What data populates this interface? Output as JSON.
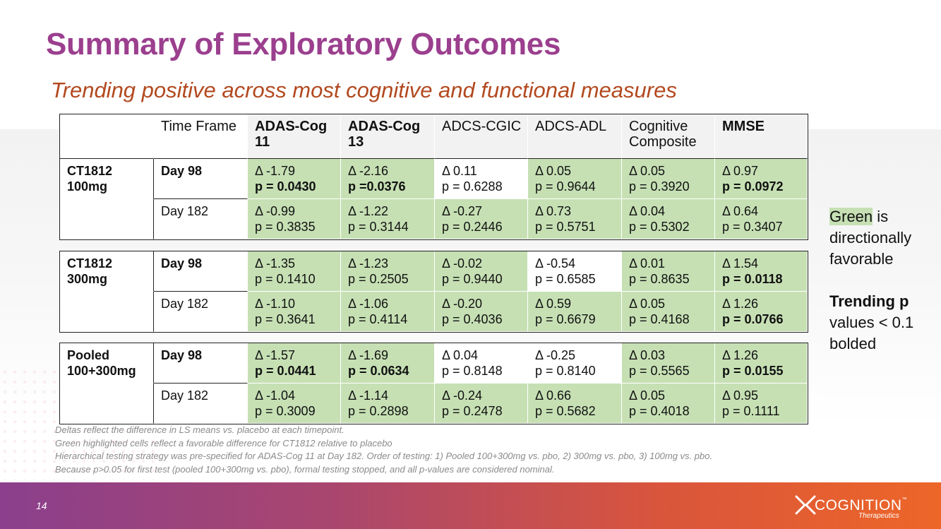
{
  "title": "Summary of Exploratory Outcomes",
  "subtitle": "Trending positive across most cognitive and functional measures",
  "header": {
    "time_frame": "Time Frame",
    "measures": [
      {
        "label": "ADAS-Cog 11",
        "bold": true
      },
      {
        "label": "ADAS-Cog 13",
        "bold": true
      },
      {
        "label": "ADCS-CGIC",
        "bold": false
      },
      {
        "label": "ADCS-ADL",
        "bold": false
      },
      {
        "label": "Cognitive Composite",
        "bold": false
      },
      {
        "label": "MMSE",
        "bold": true
      }
    ]
  },
  "groups": [
    {
      "name": "CT1812 100mg",
      "rows": [
        {
          "time": "Day 98",
          "time_bold": true,
          "cells": [
            {
              "delta": "Δ -1.79",
              "p": "p = 0.0430",
              "green": true,
              "bold": true
            },
            {
              "delta": "Δ -2.16",
              "p": "p =0.0376",
              "green": true,
              "bold": true
            },
            {
              "delta": "Δ 0.11",
              "p": "p = 0.6288",
              "green": false,
              "bold": false
            },
            {
              "delta": "Δ 0.05",
              "p": "p = 0.9644",
              "green": true,
              "bold": false
            },
            {
              "delta": "Δ 0.05",
              "p": "p = 0.3920",
              "green": true,
              "bold": false
            },
            {
              "delta": "Δ 0.97",
              "p": "p = 0.0972",
              "green": true,
              "bold": true
            }
          ]
        },
        {
          "time": "Day 182",
          "time_bold": false,
          "cells": [
            {
              "delta": "Δ -0.99",
              "p": "p = 0.3835",
              "green": true,
              "bold": false
            },
            {
              "delta": "Δ -1.22",
              "p": "p = 0.3144",
              "green": true,
              "bold": false
            },
            {
              "delta": "Δ -0.27",
              "p": "p = 0.2446",
              "green": true,
              "bold": false
            },
            {
              "delta": "Δ 0.73",
              "p": "p = 0.5751",
              "green": true,
              "bold": false
            },
            {
              "delta": "Δ 0.04",
              "p": "p = 0.5302",
              "green": true,
              "bold": false
            },
            {
              "delta": "Δ 0.64",
              "p": "p = 0.3407",
              "green": true,
              "bold": false
            }
          ]
        }
      ]
    },
    {
      "name": "CT1812 300mg",
      "rows": [
        {
          "time": "Day 98",
          "time_bold": true,
          "cells": [
            {
              "delta": "Δ -1.35",
              "p": "p = 0.1410",
              "green": true,
              "bold": false
            },
            {
              "delta": "Δ -1.23",
              "p": "p = 0.2505",
              "green": true,
              "bold": false
            },
            {
              "delta": "Δ -0.02",
              "p": "p = 0.9440",
              "green": true,
              "bold": false
            },
            {
              "delta": "Δ -0.54",
              "p": "p = 0.6585",
              "green": false,
              "bold": false
            },
            {
              "delta": "Δ 0.01",
              "p": "p = 0.8635",
              "green": true,
              "bold": false
            },
            {
              "delta": "Δ 1.54",
              "p": "p = 0.0118",
              "green": true,
              "bold": true
            }
          ]
        },
        {
          "time": "Day 182",
          "time_bold": false,
          "cells": [
            {
              "delta": "Δ -1.10",
              "p": "p = 0.3641",
              "green": true,
              "bold": false
            },
            {
              "delta": "Δ -1.06",
              "p": "p = 0.4114",
              "green": true,
              "bold": false
            },
            {
              "delta": "Δ -0.20",
              "p": "p = 0.4036",
              "green": true,
              "bold": false
            },
            {
              "delta": "Δ 0.59",
              "p": "p = 0.6679",
              "green": true,
              "bold": false
            },
            {
              "delta": "Δ 0.05",
              "p": "p = 0.4168",
              "green": true,
              "bold": false
            },
            {
              "delta": "Δ 1.26",
              "p": "p = 0.0766",
              "green": true,
              "bold": true
            }
          ]
        }
      ]
    },
    {
      "name": "Pooled 100+300mg",
      "rows": [
        {
          "time": "Day 98",
          "time_bold": true,
          "cells": [
            {
              "delta": "Δ -1.57",
              "p": "p = 0.0441",
              "green": true,
              "bold": true
            },
            {
              "delta": "Δ -1.69",
              "p": "p = 0.0634",
              "green": true,
              "bold": true
            },
            {
              "delta": "Δ 0.04",
              "p": "p = 0.8148",
              "green": false,
              "bold": false
            },
            {
              "delta": "Δ -0.25",
              "p": "p = 0.8140",
              "green": false,
              "bold": false
            },
            {
              "delta": "Δ 0.03",
              "p": "p = 0.5565",
              "green": true,
              "bold": false
            },
            {
              "delta": "Δ 1.26",
              "p": "p = 0.0155",
              "green": true,
              "bold": true
            }
          ]
        },
        {
          "time": "Day 182",
          "time_bold": false,
          "cells": [
            {
              "delta": "Δ -1.04",
              "p": "p = 0.3009",
              "green": true,
              "bold": false
            },
            {
              "delta": "Δ -1.14",
              "p": "p = 0.2898",
              "green": true,
              "bold": false
            },
            {
              "delta": "Δ -0.24",
              "p": "p = 0.2478",
              "green": true,
              "bold": false
            },
            {
              "delta": "Δ 0.66",
              "p": "p = 0.5682",
              "green": true,
              "bold": false
            },
            {
              "delta": "Δ 0.05",
              "p": "p = 0.4018",
              "green": true,
              "bold": false
            },
            {
              "delta": "Δ 0.95",
              "p": "p = 0.1111",
              "green": true,
              "bold": false
            }
          ]
        }
      ]
    }
  ],
  "legend": {
    "green_word": "Green",
    "green_rest": " is directionally favorable",
    "trend_bold": "Trending p",
    "trend_rest": " values < 0.1 bolded"
  },
  "notes": [
    "Deltas reflect the difference in LS means vs. placebo at each timepoint.",
    "Green highlighted cells reflect a favorable difference for CT1812 relative to placebo",
    "Hierarchical testing strategy was pre-specified for ADAS-Cog 11 at Day 182. Order of testing: 1) Pooled 100+300mg vs. pbo, 2) 300mg vs. pbo, 3) 100mg vs. pbo.",
    "Because p>0.05 for first test (pooled 100+300mg vs. pbo), formal testing stopped, and all p-values are considered nominal."
  ],
  "page_number": "14",
  "logo": {
    "word": "COGNITION",
    "tm": "™",
    "sub": "Therapeutics"
  },
  "colors": {
    "title": "#9b3f8e",
    "subtitle": "#b2491f",
    "green_cell": "#c6e0b4",
    "footer_start": "#8b3f8c",
    "footer_end": "#ed6628"
  }
}
